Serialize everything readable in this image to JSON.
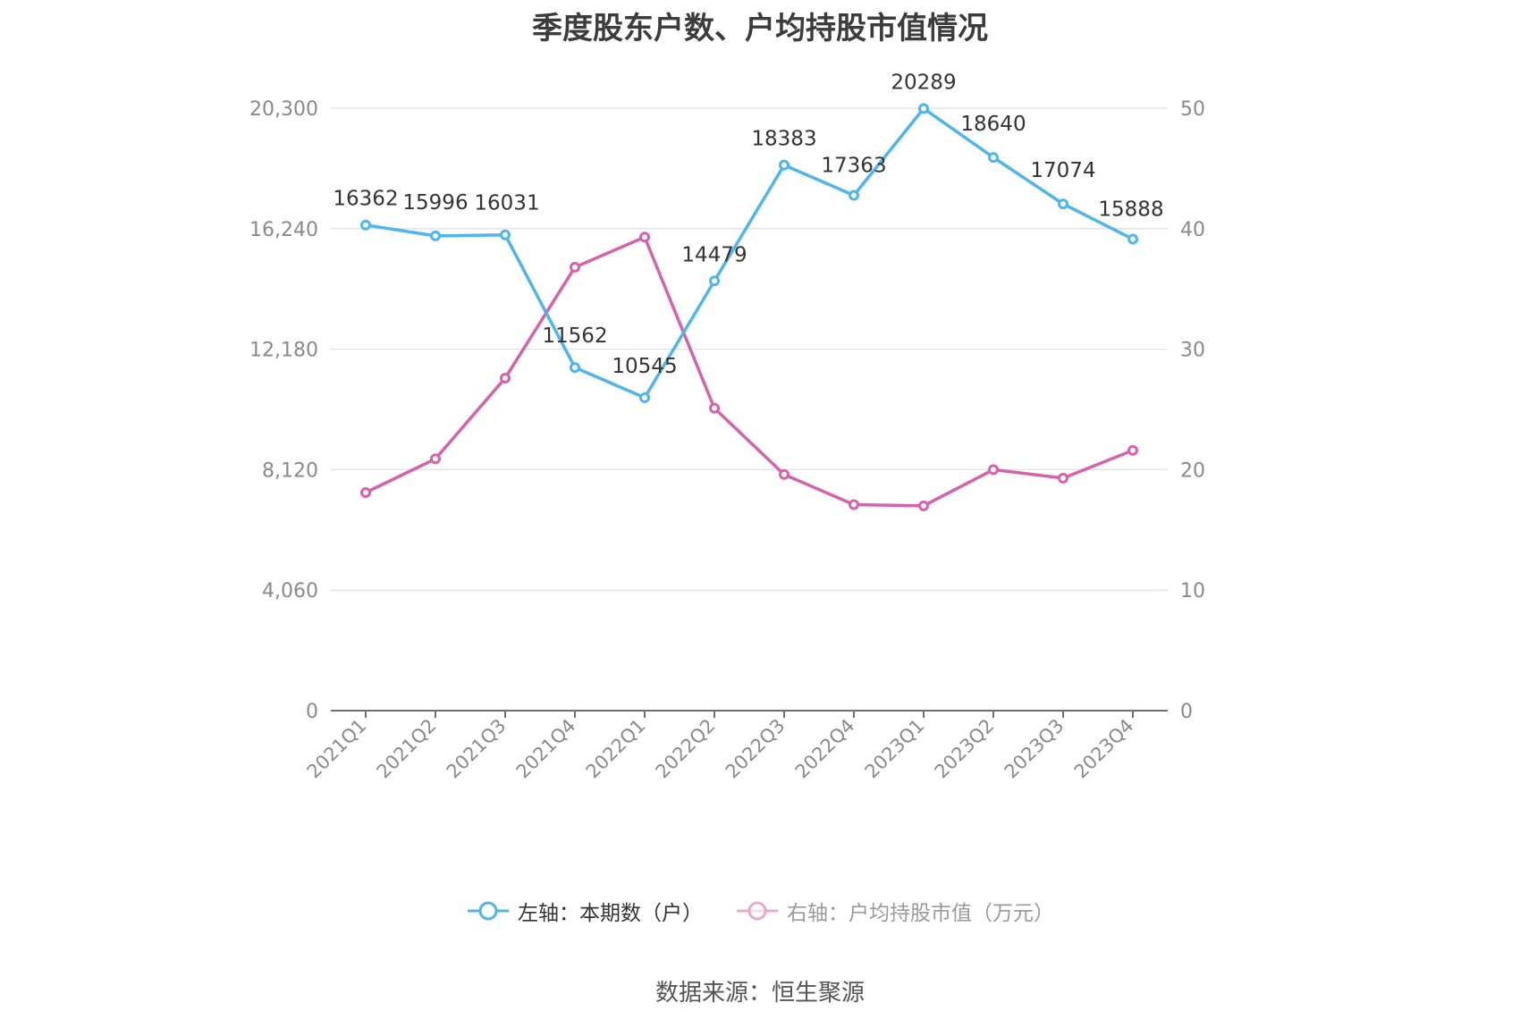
{
  "chart_data": {
    "type": "line",
    "title": "季度股东户数、户均持股市值情况",
    "categories": [
      "2021Q1",
      "2021Q2",
      "2021Q3",
      "2021Q4",
      "2022Q1",
      "2022Q2",
      "2022Q3",
      "2022Q4",
      "2023Q1",
      "2023Q2",
      "2023Q3",
      "2023Q4"
    ],
    "series": [
      {
        "name": "左轴：本期数（户）",
        "axis": "left",
        "color": "#4db6ee",
        "values": [
          16362,
          15996,
          16031,
          11562,
          10545,
          14479,
          18383,
          17363,
          20289,
          18640,
          17074,
          15888
        ],
        "data_labels": true
      },
      {
        "name": "右轴：户均持股市值（万元）",
        "axis": "right",
        "color": "#d862a9",
        "values": [
          18.1,
          20.9,
          27.6,
          36.8,
          39.3,
          25.1,
          19.6,
          17.1,
          17.0,
          20.0,
          19.3,
          21.6
        ],
        "data_labels": false
      }
    ],
    "left_axis": {
      "ticks": [
        "0",
        "4,060",
        "8,120",
        "12,180",
        "16,240",
        "20,300"
      ],
      "ylim": [
        0,
        20300
      ]
    },
    "right_axis": {
      "ticks": [
        "0",
        "10",
        "20",
        "30",
        "40",
        "50"
      ],
      "ylim": [
        0,
        50
      ]
    },
    "xlabel": "",
    "ylabel": "",
    "grid": true,
    "legend_position": "bottom"
  },
  "legend": {
    "items": [
      {
        "label": "左轴：本期数（户）",
        "color": "#4db6ee",
        "active": true
      },
      {
        "label": "右轴：户均持股市值（万元）",
        "color": "#e8a9cf",
        "active": false
      }
    ]
  },
  "footer": {
    "source": "数据来源：恒生聚源"
  },
  "colors": {
    "grid": "#e0e3f0",
    "axis": "#6e7079",
    "tick_label": "#8a8a8a",
    "data_label": "#333333"
  }
}
